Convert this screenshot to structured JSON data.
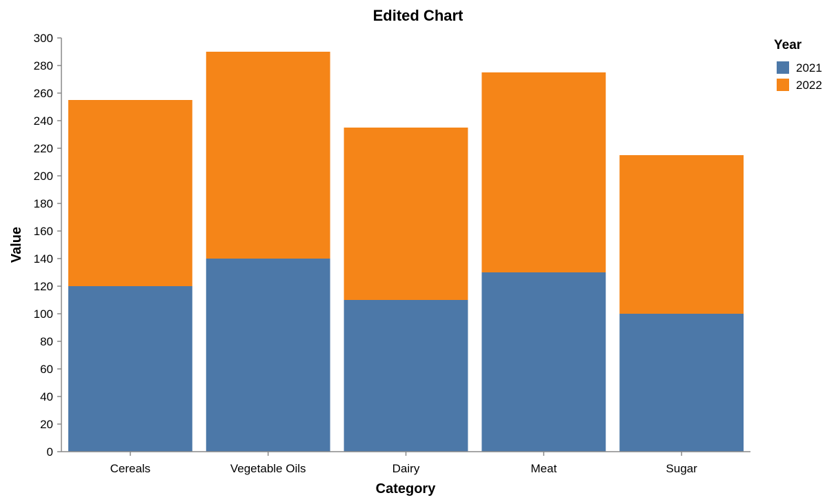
{
  "chart_data": {
    "type": "bar",
    "stacked": true,
    "title": "Edited Chart",
    "xlabel": "Category",
    "ylabel": "Value",
    "ylim": [
      0,
      300
    ],
    "yticks": [
      0,
      20,
      40,
      60,
      80,
      100,
      120,
      140,
      160,
      180,
      200,
      220,
      240,
      260,
      280,
      300
    ],
    "categories": [
      "Cereals",
      "Vegetable Oils",
      "Dairy",
      "Meat",
      "Sugar"
    ],
    "series": [
      {
        "name": "2021",
        "color": "#4c78a8",
        "values": [
          120,
          140,
          110,
          130,
          100
        ]
      },
      {
        "name": "2022",
        "color": "#f58518",
        "values": [
          135,
          150,
          125,
          145,
          115
        ]
      }
    ],
    "legend": {
      "title": "Year",
      "position": "top-right"
    },
    "grid": false
  }
}
